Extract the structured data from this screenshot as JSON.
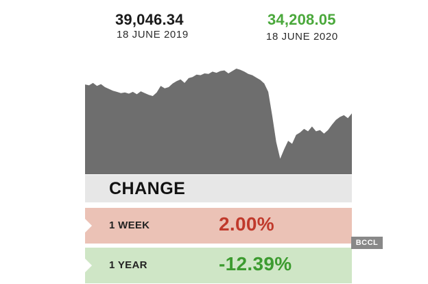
{
  "header": {
    "start_value": "39,046.34",
    "start_date": "18 JUNE 2019",
    "end_value": "34,208.05",
    "end_date": "18 JUNE 2020"
  },
  "chart_data": {
    "type": "area",
    "title": "",
    "xlabel": "",
    "ylabel": "",
    "x_range": [
      "18 JUNE 2019",
      "18 JUNE 2020"
    ],
    "ylim": [
      24000,
      44000
    ],
    "color": "#6e6e6e",
    "grid": false,
    "values": [
      39046,
      38900,
      39300,
      38800,
      39100,
      38600,
      38300,
      38000,
      37800,
      37600,
      37700,
      37500,
      37800,
      37400,
      37900,
      37600,
      37300,
      37100,
      37700,
      38800,
      38400,
      38600,
      39200,
      39600,
      39900,
      39300,
      40100,
      40300,
      40700,
      40600,
      40900,
      40800,
      41200,
      41000,
      41300,
      41400,
      40900,
      41300,
      41700,
      41500,
      41200,
      40800,
      40600,
      40200,
      39800,
      39200,
      37800,
      33800,
      29400,
      26600,
      28200,
      29600,
      29100,
      30600,
      31000,
      31600,
      31200,
      32000,
      31200,
      31400,
      30800,
      31400,
      32300,
      33100,
      33600,
      33900,
      33400,
      34208
    ]
  },
  "change": {
    "heading": "CHANGE",
    "rows": [
      {
        "label": "1 WEEK",
        "value": "2.00%"
      },
      {
        "label": "1 YEAR",
        "value": "-12.39%"
      }
    ]
  },
  "watermark": "BCCL"
}
